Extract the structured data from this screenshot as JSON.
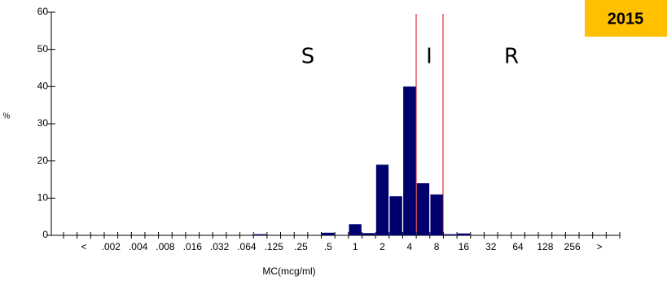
{
  "chart_data": {
    "type": "bar",
    "badge": "2015",
    "y_label": "%",
    "x_label": "MC(mcg/ml)",
    "annotations": [
      "S",
      "I",
      "R"
    ],
    "categories": [
      null,
      "<",
      null,
      ".002",
      null,
      ".004",
      null,
      ".008",
      null,
      ".016",
      null,
      ".032",
      null,
      ".064",
      null,
      ".125",
      null,
      ".25",
      null,
      ".5",
      null,
      "1",
      null,
      "2",
      null,
      "4",
      null,
      "8",
      null,
      "16",
      null,
      "32",
      null,
      "64",
      null,
      "128",
      null,
      "256",
      null,
      ">",
      null
    ],
    "values": [
      0,
      0,
      0,
      0,
      0,
      0,
      0,
      0,
      0,
      0,
      0,
      0,
      0,
      0,
      0.3,
      0,
      0,
      0,
      0,
      0.7,
      0,
      3,
      0.6,
      19,
      10.5,
      40,
      14,
      11,
      0.3,
      0.5,
      0,
      0,
      0,
      0,
      0,
      0,
      0,
      0,
      0,
      0,
      0
    ],
    "color": "#00006e",
    "ylim": [
      0,
      60
    ],
    "yticks": [
      0,
      10,
      20,
      30,
      40,
      50,
      60
    ]
  }
}
